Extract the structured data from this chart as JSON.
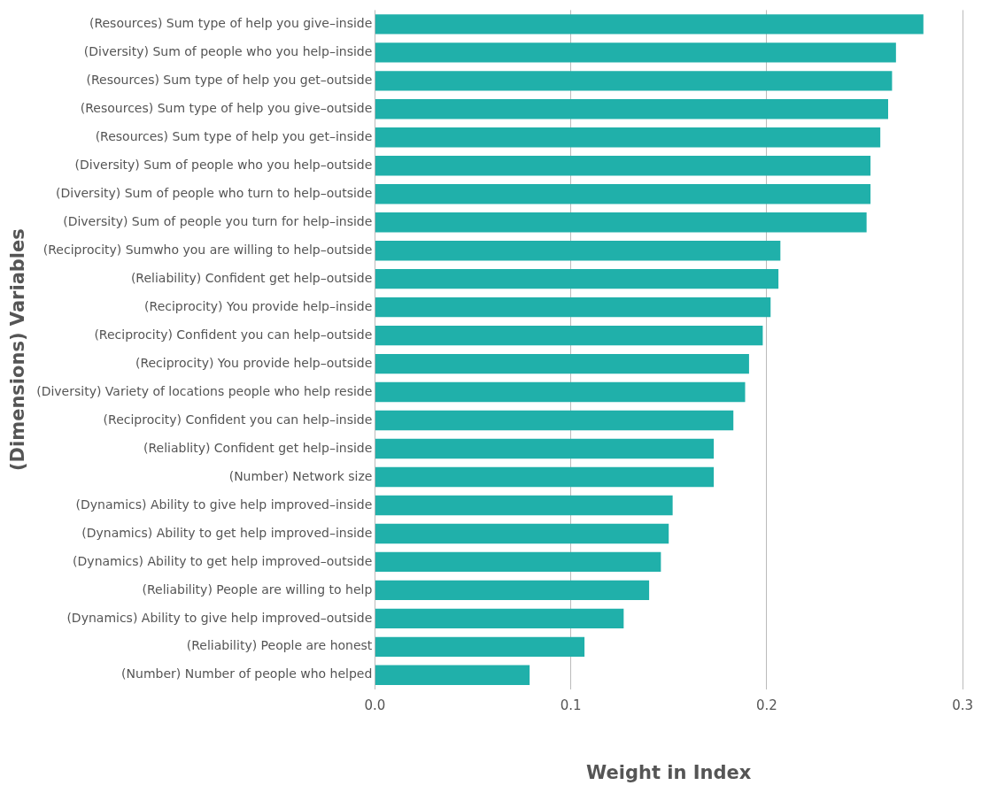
{
  "chart_data": {
    "type": "bar",
    "orientation": "horizontal",
    "xlabel": "Weight in Index",
    "ylabel": "(Dimensions) Variables",
    "categories": [
      "(Resources) Sum type of help you give–inside",
      "(Diversity) Sum of people who you help–inside",
      "(Resources) Sum type of help you get–outside",
      "(Resources) Sum type of help you give–outside",
      "(Resources) Sum type of help you get–inside",
      "(Diversity) Sum of people who you help–outside",
      "(Diversity) Sum of people who turn to help–outside",
      "(Diversity) Sum of people you turn for help–inside",
      "(Reciprocity) Sumwho you are willing to help–outside",
      "(Reliability) Confident get help–outside",
      "(Reciprocity) You provide help–inside",
      "(Reciprocity) Confident you can help–outside",
      "(Reciprocity) You provide help–outside",
      "(Diversity) Variety of locations people who help reside",
      "(Reciprocity) Confident you can help–inside",
      "(Reliablity) Confident get help–inside",
      "(Number) Network size",
      "(Dynamics) Ability to give help improved–inside",
      "(Dynamics) Ability to get help improved–inside",
      "(Dynamics) Ability to get help improved–outside",
      "(Reliability) People are willing to help",
      "(Dynamics) Ability to give help improved–outside",
      "(Reliability) People are honest",
      "(Number) Number of people who helped"
    ],
    "values": [
      0.28,
      0.266,
      0.264,
      0.262,
      0.258,
      0.253,
      0.253,
      0.251,
      0.207,
      0.206,
      0.202,
      0.198,
      0.191,
      0.189,
      0.183,
      0.173,
      0.173,
      0.152,
      0.15,
      0.146,
      0.14,
      0.127,
      0.107,
      0.079
    ],
    "color": "#20b0aa",
    "xlim": [
      0,
      0.3
    ],
    "xticks": [
      {
        "value": 0,
        "label": "0.0"
      },
      0.1,
      0.2,
      0.3
    ],
    "grid": "x"
  }
}
